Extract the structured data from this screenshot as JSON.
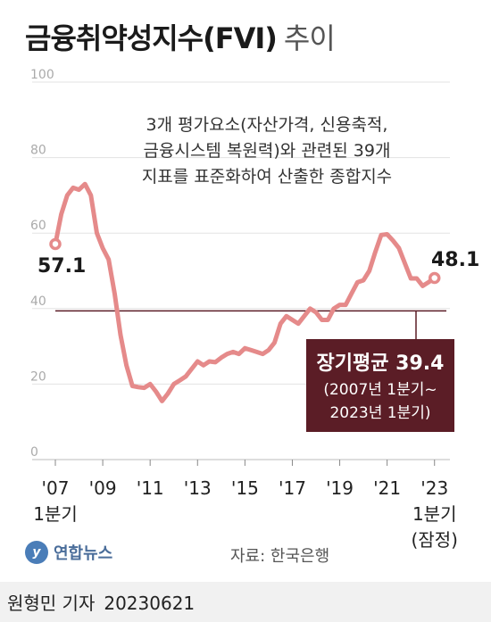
{
  "header": {
    "title": "금융취약성지수(FVI)",
    "subtitle": "추이"
  },
  "chart_data": {
    "type": "line",
    "y_ticks": [
      "100",
      "80",
      "60",
      "40",
      "20",
      "0"
    ],
    "ylim": [
      0,
      100
    ],
    "xlim": [
      2007,
      2023.5
    ],
    "x_ticks": [
      {
        "x": 2007,
        "line1": "'07",
        "line2": "1분기"
      },
      {
        "x": 2009,
        "line1": "'09",
        "line2": ""
      },
      {
        "x": 2011,
        "line1": "'11",
        "line2": ""
      },
      {
        "x": 2013,
        "line1": "'13",
        "line2": ""
      },
      {
        "x": 2015,
        "line1": "'15",
        "line2": ""
      },
      {
        "x": 2017,
        "line1": "'17",
        "line2": ""
      },
      {
        "x": 2019,
        "line1": "'19",
        "line2": ""
      },
      {
        "x": 2021,
        "line1": "'21",
        "line2": ""
      },
      {
        "x": 2023,
        "line1": "'23",
        "line2": "1분기"
      }
    ],
    "x_tick_note": "(잠정)",
    "series": [
      {
        "color": "#e58a8a",
        "points": [
          [
            2007.0,
            57.1
          ],
          [
            2007.25,
            65
          ],
          [
            2007.5,
            70
          ],
          [
            2007.75,
            72
          ],
          [
            2008.0,
            71.5
          ],
          [
            2008.25,
            73
          ],
          [
            2008.5,
            70
          ],
          [
            2008.75,
            60
          ],
          [
            2009.0,
            56
          ],
          [
            2009.25,
            53
          ],
          [
            2009.5,
            44
          ],
          [
            2009.75,
            33
          ],
          [
            2010.0,
            25
          ],
          [
            2010.25,
            19.5
          ],
          [
            2010.5,
            19.2
          ],
          [
            2010.75,
            19
          ],
          [
            2011.0,
            20
          ],
          [
            2011.25,
            18
          ],
          [
            2011.5,
            15.5
          ],
          [
            2011.75,
            17.5
          ],
          [
            2012.0,
            20
          ],
          [
            2012.25,
            21
          ],
          [
            2012.5,
            22
          ],
          [
            2012.75,
            24
          ],
          [
            2013.0,
            26
          ],
          [
            2013.25,
            25
          ],
          [
            2013.5,
            26
          ],
          [
            2013.75,
            25.8
          ],
          [
            2014.0,
            27
          ],
          [
            2014.25,
            28
          ],
          [
            2014.5,
            28.5
          ],
          [
            2014.75,
            28
          ],
          [
            2015.0,
            29.5
          ],
          [
            2015.25,
            29
          ],
          [
            2015.5,
            28.5
          ],
          [
            2015.75,
            28
          ],
          [
            2016.0,
            29
          ],
          [
            2016.25,
            31
          ],
          [
            2016.5,
            36
          ],
          [
            2016.75,
            38
          ],
          [
            2017.0,
            37
          ],
          [
            2017.25,
            36
          ],
          [
            2017.5,
            38
          ],
          [
            2017.75,
            40
          ],
          [
            2018.0,
            39
          ],
          [
            2018.25,
            37
          ],
          [
            2018.5,
            37
          ],
          [
            2018.75,
            40
          ],
          [
            2019.0,
            41
          ],
          [
            2019.25,
            41
          ],
          [
            2019.5,
            44
          ],
          [
            2019.75,
            47
          ],
          [
            2020.0,
            47.5
          ],
          [
            2020.25,
            50
          ],
          [
            2020.5,
            55
          ],
          [
            2020.75,
            59.5
          ],
          [
            2021.0,
            59.7
          ],
          [
            2021.25,
            58
          ],
          [
            2021.5,
            56
          ],
          [
            2021.75,
            52
          ],
          [
            2022.0,
            48
          ],
          [
            2022.25,
            48
          ],
          [
            2022.5,
            46
          ],
          [
            2022.75,
            47
          ],
          [
            2023.0,
            48.1
          ]
        ]
      }
    ],
    "reference_line": {
      "value": 39.4,
      "color": "#5b1d26"
    },
    "labels": {
      "start_value": "57.1",
      "end_value": "48.1"
    },
    "annotation": {
      "lines": [
        "3개 평가요소(자산가격, 신용축적,",
        "금융시스템 복원력)와 관련된 39개",
        "지표를 표준화하여 산출한 종합지수"
      ]
    },
    "average_box": {
      "title": "장기평균 39.4",
      "line1": "(2007년 1분기~",
      "line2": "2023년 1분기)",
      "color": "#5b1d26"
    }
  },
  "footer": {
    "logo_text": "연합뉴스",
    "source": "자료: 한국은행",
    "reporter": "원형민 기자",
    "date": "20230621"
  }
}
